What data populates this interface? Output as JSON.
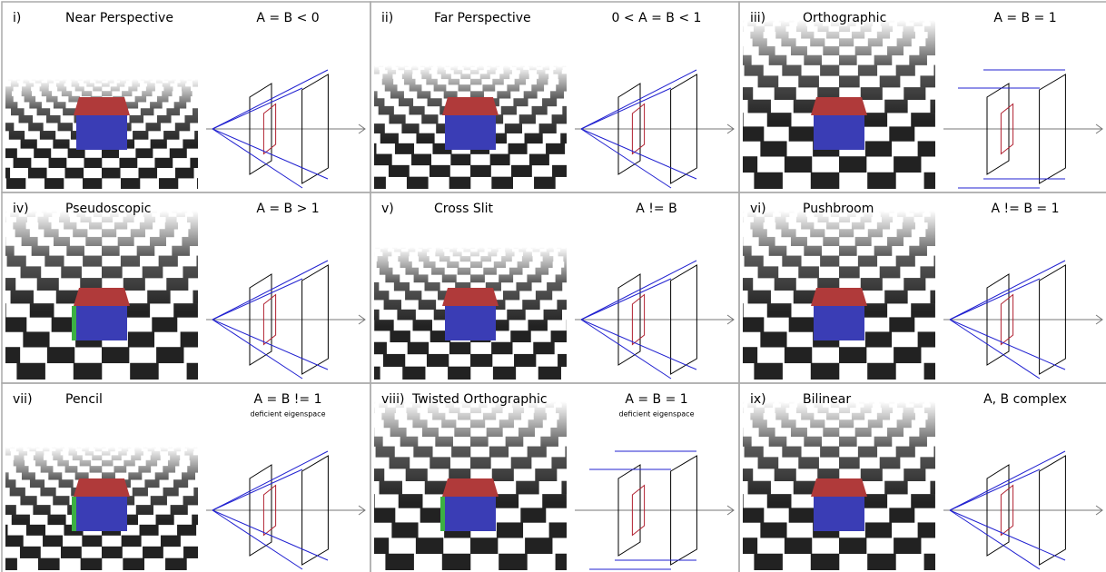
{
  "panels": [
    {
      "numeral": "i)",
      "name": "Near Perspective",
      "condition": "A = B < 0"
    },
    {
      "numeral": "ii)",
      "name": "Far Perspective",
      "condition": "0 < A = B < 1"
    },
    {
      "numeral": "iii)",
      "name": "Orthographic",
      "condition": "A = B = 1"
    },
    {
      "numeral": "iv)",
      "name": "Pseudoscopic",
      "condition": "A = B > 1"
    },
    {
      "numeral": "v)",
      "name": "Cross Slit",
      "condition": "A != B"
    },
    {
      "numeral": "vi)",
      "name": "Pushbroom",
      "condition": "A != B = 1"
    },
    {
      "numeral": "vii)",
      "name": "Pencil",
      "condition": "A = B != 1",
      "note": "deficient eigenspace"
    },
    {
      "numeral": "viii)",
      "name": "Twisted Orthographic",
      "condition": "A = B = 1",
      "note": "deficient eigenspace"
    },
    {
      "numeral": "ix)",
      "name": "Bilinear",
      "condition": "A, B  complex"
    }
  ]
}
